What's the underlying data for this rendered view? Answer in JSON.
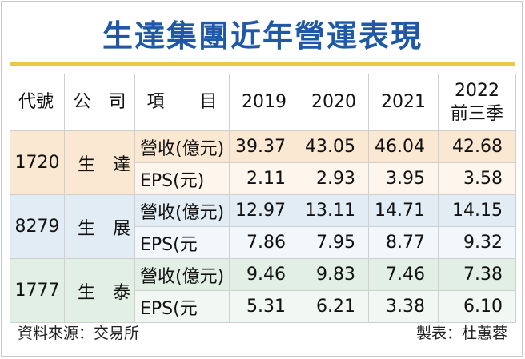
{
  "title": "生達集團近年營運表現",
  "headers": {
    "code": "代號",
    "company": "公　司",
    "item": "項　　目",
    "years": [
      "2019",
      "2020",
      "2021"
    ],
    "last_year_line1": "2022",
    "last_year_line2": "前三季"
  },
  "rows": [
    {
      "code": "1720",
      "company": "生　達",
      "revenue_label": "營收(億元)",
      "eps_label": "EPS(元)",
      "revenue": [
        "39.37",
        "43.05",
        "46.04",
        "42.68"
      ],
      "eps": [
        "2.11",
        "2.93",
        "3.95",
        "3.58"
      ]
    },
    {
      "code": "8279",
      "company": "生　展",
      "revenue_label": "營收(億元)",
      "eps_label": "EPS(元",
      "revenue": [
        "12.97",
        "13.11",
        "14.71",
        "14.15"
      ],
      "eps": [
        "7.86",
        "7.95",
        "8.77",
        "9.32"
      ]
    },
    {
      "code": "1777",
      "company": "生　泰",
      "revenue_label": "營收(億元)",
      "eps_label": "EPS(元",
      "revenue": [
        "9.46",
        "9.83",
        "7.46",
        "7.38"
      ],
      "eps": [
        "5.31",
        "6.21",
        "3.38",
        "6.10"
      ]
    }
  ],
  "footer": {
    "source": "資料來源：交易所",
    "made_by": "製表：杜蕙蓉"
  },
  "colors": {
    "title": "#2058a8",
    "title_line": "#e9c848",
    "group1": "#fbe8d2",
    "group2": "#e2ecf5",
    "group3": "#e1efe5"
  }
}
